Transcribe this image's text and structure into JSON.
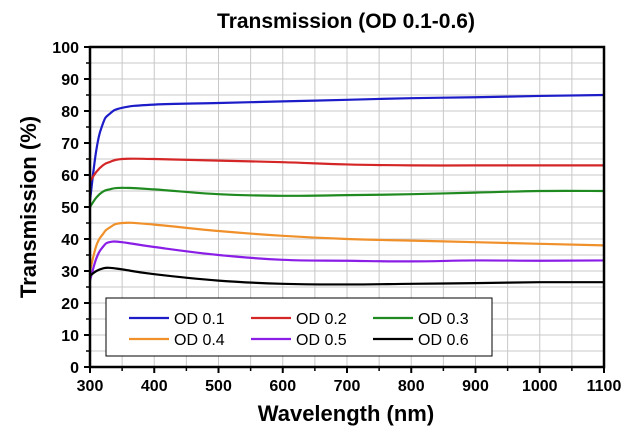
{
  "chart_data": {
    "type": "line",
    "title": "Transmission (OD 0.1-0.6)",
    "xlabel": "Wavelength (nm)",
    "ylabel": "Transmission (%)",
    "xlim": [
      300,
      1100
    ],
    "ylim": [
      0,
      100
    ],
    "xticks": [
      300,
      400,
      500,
      600,
      700,
      800,
      900,
      1000,
      1100
    ],
    "yticks": [
      0,
      10,
      20,
      30,
      40,
      50,
      60,
      70,
      80,
      90,
      100
    ],
    "grid": true,
    "grid_minor_x": 50,
    "grid_minor_y": 5,
    "legend": {
      "placement": "bottom-left",
      "columns": 3
    },
    "x": [
      300,
      310,
      320,
      330,
      350,
      400,
      500,
      600,
      700,
      800,
      900,
      1000,
      1100
    ],
    "series": [
      {
        "name": "OD 0.1",
        "color": "#1c1cc8",
        "values": [
          52,
          68,
          76,
          79,
          81,
          82,
          82.5,
          83,
          83.5,
          84,
          84.3,
          84.7,
          85
        ]
      },
      {
        "name": "OD 0.2",
        "color": "#d42626",
        "values": [
          58,
          61,
          63,
          64,
          65,
          65,
          64.5,
          64,
          63.3,
          63,
          63,
          63,
          63
        ]
      },
      {
        "name": "OD 0.3",
        "color": "#1f8a1f",
        "values": [
          50,
          53,
          54.8,
          55.5,
          56,
          55.5,
          54,
          53.5,
          53.7,
          54,
          54.5,
          55,
          55
        ]
      },
      {
        "name": "OD 0.4",
        "color": "#f0902a",
        "values": [
          30,
          38,
          41.5,
          43.5,
          45,
          44.5,
          42.5,
          41,
          40,
          39.5,
          39,
          38.5,
          38
        ]
      },
      {
        "name": "OD 0.5",
        "color": "#8a1ee6",
        "values": [
          27,
          34,
          37.5,
          39,
          39,
          37.5,
          35,
          33.5,
          33.2,
          33,
          33.3,
          33.2,
          33.3
        ]
      },
      {
        "name": "OD 0.6",
        "color": "#000000",
        "values": [
          28.5,
          30,
          30.8,
          31,
          30.5,
          29,
          27,
          26,
          25.8,
          26,
          26.2,
          26.5,
          26.5
        ]
      }
    ]
  }
}
